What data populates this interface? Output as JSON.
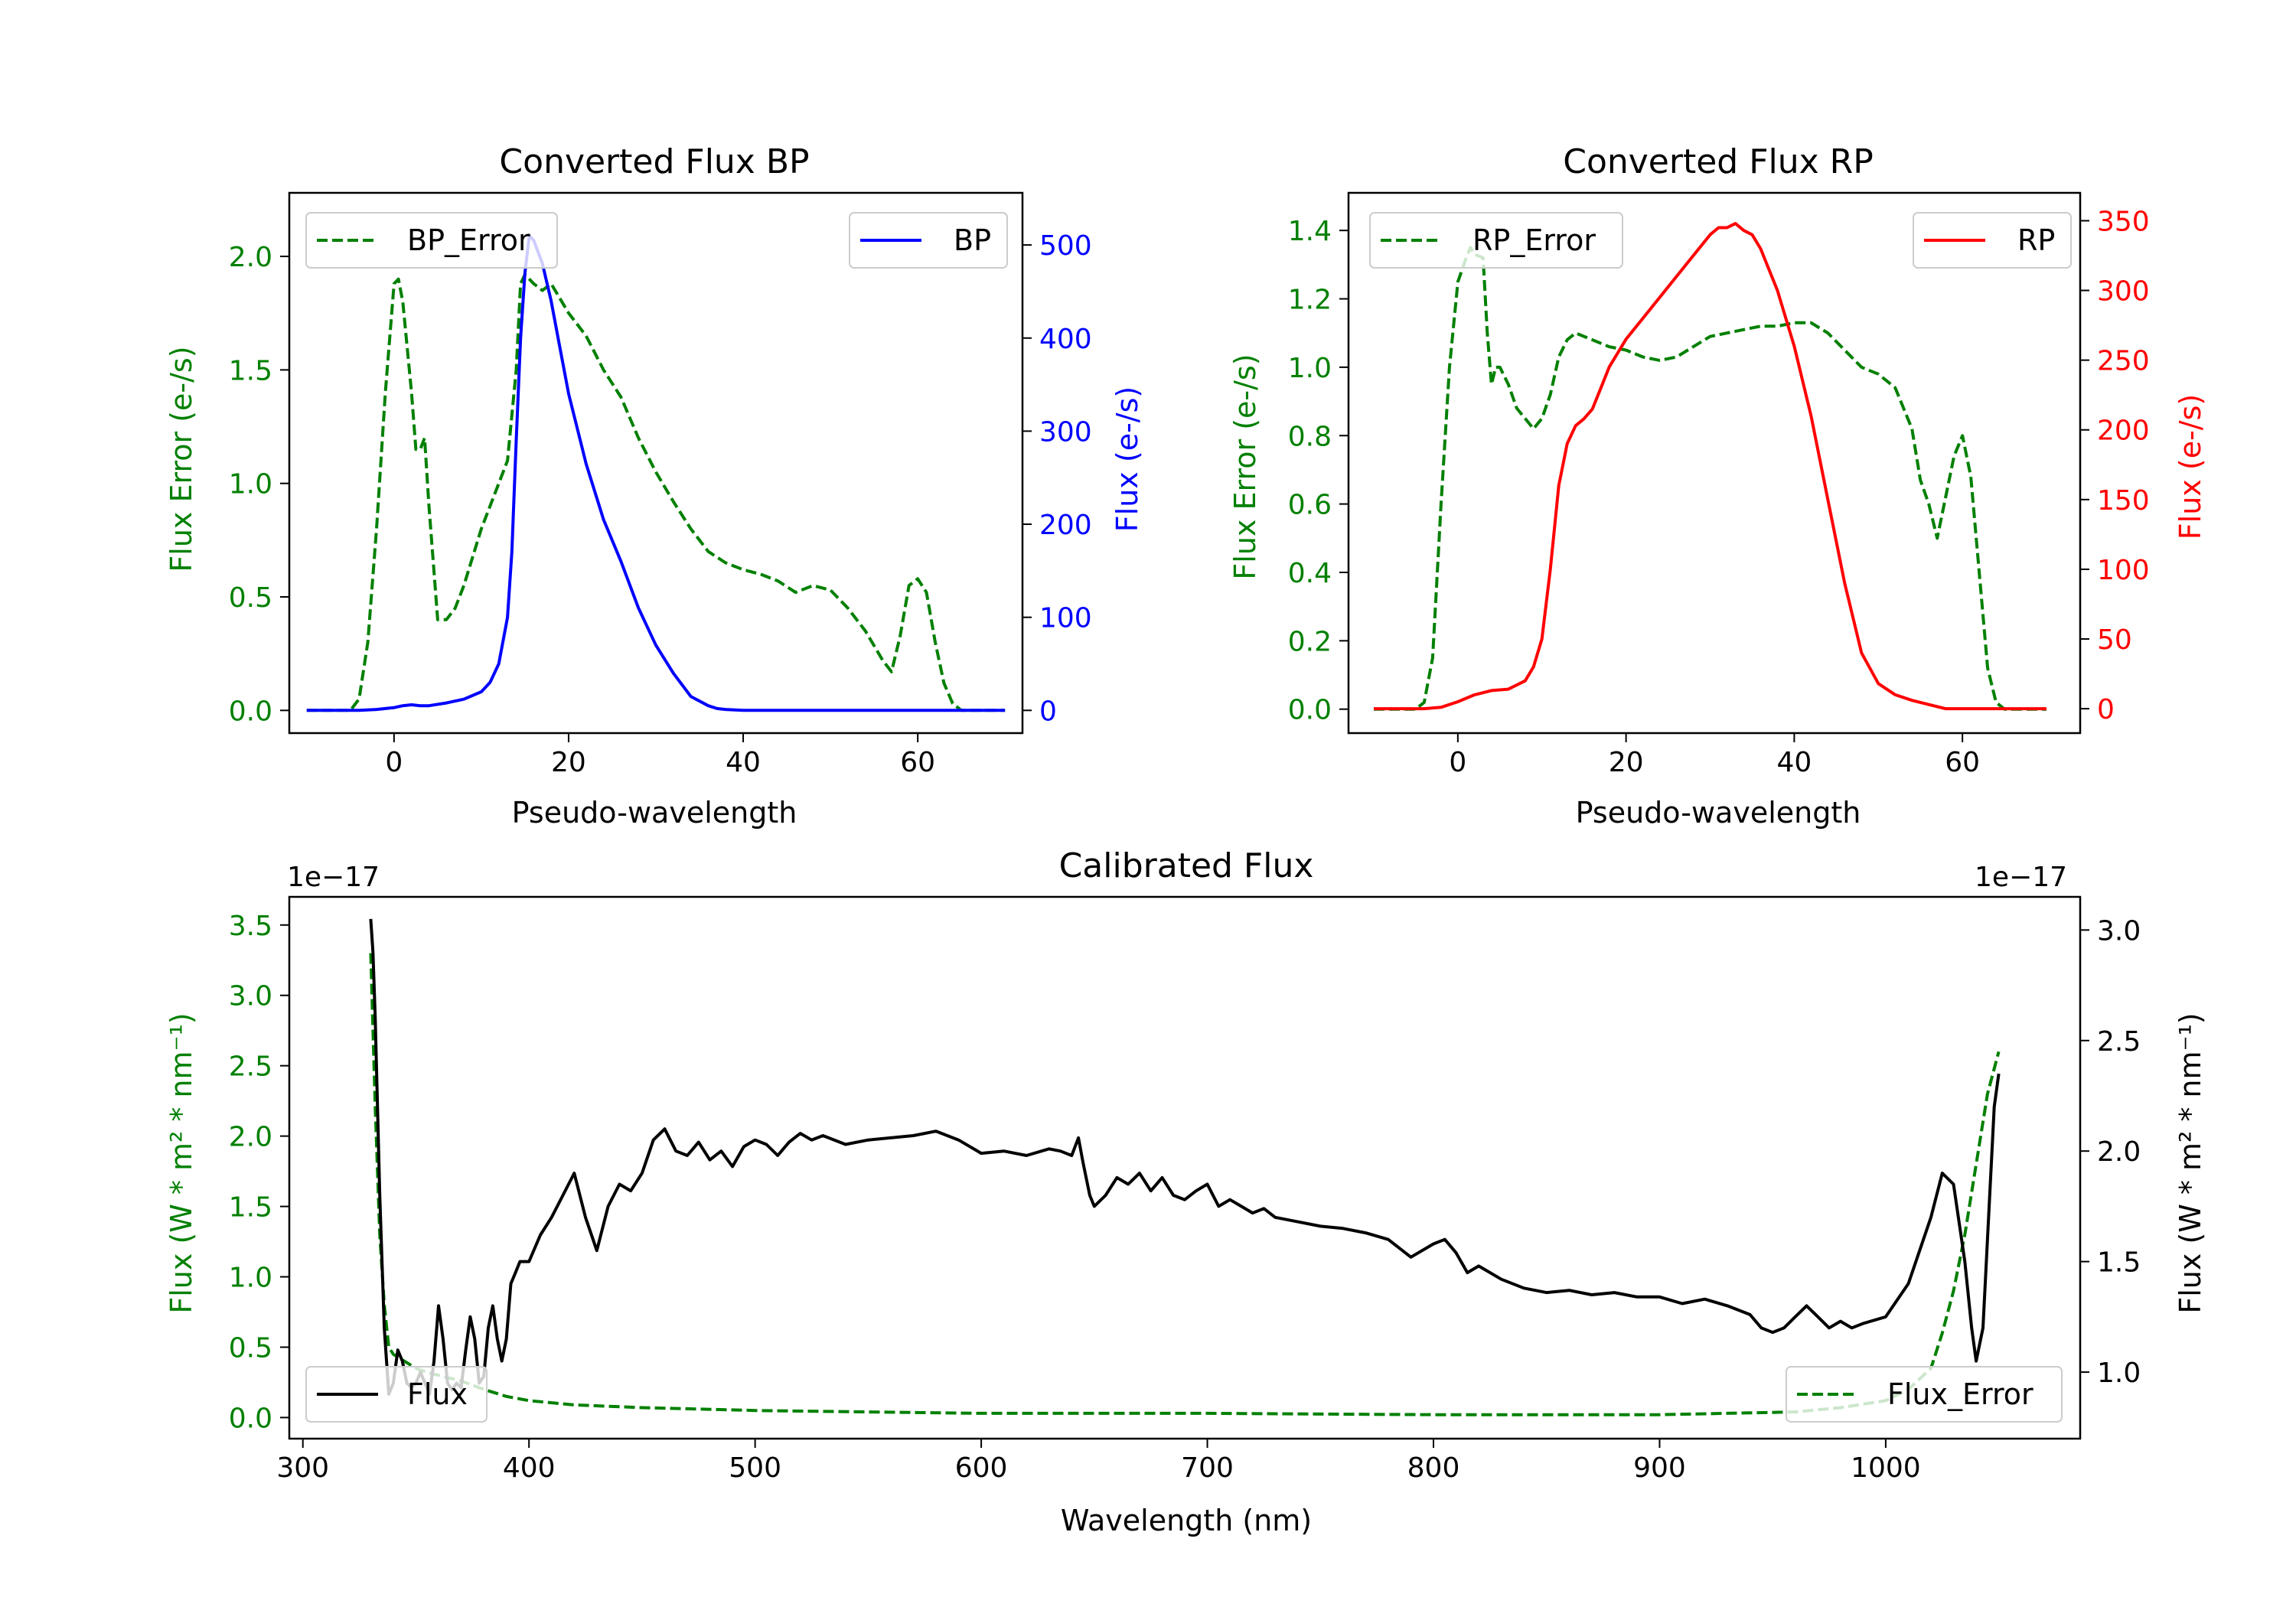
{
  "chart_data": [
    {
      "id": "bp",
      "type": "line",
      "title": "Converted Flux BP",
      "xlabel": "Pseudo-wavelength",
      "ylabel_left": "Flux Error (e-/s)",
      "ylabel_right": "Flux (e-/s)",
      "xlim": [
        -12,
        72
      ],
      "ylim_left": [
        -0.1,
        2.28
      ],
      "ylim_right": [
        -24.4,
        556
      ],
      "xticks": [
        0,
        20,
        40,
        60
      ],
      "yticks_left": [
        0.0,
        0.5,
        1.0,
        1.5,
        2.0
      ],
      "yticks_left_labels": [
        "0.0",
        "0.5",
        "1.0",
        "1.5",
        "2.0"
      ],
      "yticks_right": [
        0,
        100,
        200,
        300,
        400,
        500
      ],
      "yticks_right_labels": [
        "0",
        "100",
        "200",
        "300",
        "400",
        "500"
      ],
      "colors": {
        "left_axis": "#008000",
        "right_axis": "#0000ff"
      },
      "series": [
        {
          "name": "BP_Error",
          "axis": "left",
          "color": "#008000",
          "dash": true,
          "x": [
            -10,
            -5,
            -4,
            -3,
            -2,
            -1,
            0,
            0.5,
            1,
            2,
            2.5,
            3,
            3.5,
            4,
            5,
            6,
            7,
            8,
            10,
            12,
            13,
            14,
            14.5,
            15,
            15.5,
            16,
            17,
            18,
            20,
            22,
            24,
            26,
            28,
            30,
            32,
            34,
            36,
            38,
            40,
            42,
            44,
            46,
            48,
            50,
            52,
            54,
            56,
            57,
            58,
            59,
            60,
            61,
            62,
            63,
            64,
            65,
            70
          ],
          "y": [
            0,
            0,
            0.05,
            0.3,
            0.8,
            1.4,
            1.88,
            1.9,
            1.8,
            1.4,
            1.15,
            1.15,
            1.2,
            0.9,
            0.4,
            0.4,
            0.45,
            0.55,
            0.8,
            1.0,
            1.1,
            1.5,
            1.88,
            1.92,
            1.9,
            1.88,
            1.85,
            1.88,
            1.75,
            1.65,
            1.5,
            1.38,
            1.2,
            1.05,
            0.92,
            0.8,
            0.7,
            0.65,
            0.62,
            0.6,
            0.57,
            0.52,
            0.55,
            0.53,
            0.45,
            0.35,
            0.22,
            0.17,
            0.33,
            0.55,
            0.58,
            0.52,
            0.3,
            0.12,
            0.03,
            0,
            0
          ]
        },
        {
          "name": "BP",
          "axis": "right",
          "color": "#0000ff",
          "dash": false,
          "x": [
            -10,
            -4,
            -2,
            0,
            1,
            2,
            3,
            4,
            6,
            8,
            10,
            11,
            12,
            13,
            13.5,
            14,
            14.5,
            15,
            15.5,
            16,
            17,
            18,
            19,
            20,
            22,
            24,
            26,
            28,
            30,
            32,
            34,
            36,
            37,
            38,
            40,
            42,
            44,
            46,
            48,
            50,
            52,
            54,
            56,
            58,
            60,
            62,
            64,
            66,
            70
          ],
          "y": [
            0,
            0,
            1,
            3,
            5,
            6,
            5,
            5,
            8,
            12,
            20,
            30,
            50,
            100,
            170,
            290,
            400,
            470,
            510,
            505,
            480,
            440,
            390,
            340,
            265,
            205,
            160,
            110,
            70,
            40,
            15,
            5,
            2,
            1,
            0,
            0,
            0,
            0,
            0,
            0,
            0,
            0,
            0,
            0,
            0,
            0,
            0,
            0,
            0
          ]
        }
      ],
      "legend": [
        {
          "label": "BP_Error",
          "position": "upper-left"
        },
        {
          "label": "BP",
          "position": "upper-right"
        }
      ]
    },
    {
      "id": "rp",
      "type": "line",
      "title": "Converted Flux RP",
      "xlabel": "Pseudo-wavelength",
      "ylabel_left": "Flux Error (e-/s)",
      "ylabel_right": "Flux (e-/s)",
      "xlim": [
        -13,
        74
      ],
      "ylim_left": [
        -0.07,
        1.51
      ],
      "ylim_right": [
        -17.5,
        370
      ],
      "xticks": [
        0,
        20,
        40,
        60
      ],
      "yticks_left": [
        0.0,
        0.2,
        0.4,
        0.6,
        0.8,
        1.0,
        1.2,
        1.4
      ],
      "yticks_left_labels": [
        "0.0",
        "0.2",
        "0.4",
        "0.6",
        "0.8",
        "1.0",
        "1.2",
        "1.4"
      ],
      "yticks_right": [
        0,
        50,
        100,
        150,
        200,
        250,
        300,
        350
      ],
      "yticks_right_labels": [
        "0",
        "50",
        "100",
        "150",
        "200",
        "250",
        "300",
        "350"
      ],
      "colors": {
        "left_axis": "#008000",
        "right_axis": "#ff0000"
      },
      "series": [
        {
          "name": "RP_Error",
          "axis": "left",
          "color": "#008000",
          "dash": true,
          "x": [
            -10,
            -5,
            -4,
            -3,
            -2,
            -1,
            0,
            1,
            1.5,
            2,
            3,
            3.5,
            4,
            4.5,
            5,
            6,
            7,
            8,
            9,
            10,
            11,
            12,
            13,
            14,
            16,
            18,
            20,
            22,
            24,
            26,
            28,
            30,
            32,
            34,
            36,
            38,
            40,
            42,
            44,
            46,
            48,
            50,
            52,
            54,
            55,
            56,
            57,
            58,
            59,
            60,
            61,
            62,
            63,
            64,
            65,
            70
          ],
          "y": [
            0,
            0,
            0.02,
            0.15,
            0.6,
            1.0,
            1.25,
            1.32,
            1.35,
            1.33,
            1.32,
            1.1,
            0.95,
            1.0,
            1.0,
            0.95,
            0.88,
            0.85,
            0.82,
            0.85,
            0.92,
            1.03,
            1.08,
            1.1,
            1.08,
            1.06,
            1.05,
            1.03,
            1.02,
            1.03,
            1.06,
            1.09,
            1.1,
            1.11,
            1.12,
            1.12,
            1.13,
            1.13,
            1.1,
            1.05,
            1.0,
            0.98,
            0.94,
            0.82,
            0.67,
            0.6,
            0.5,
            0.62,
            0.74,
            0.8,
            0.68,
            0.4,
            0.12,
            0.02,
            0,
            0
          ]
        },
        {
          "name": "RP",
          "axis": "right",
          "color": "#ff0000",
          "dash": false,
          "x": [
            -10,
            -4,
            -2,
            0,
            2,
            4,
            6,
            8,
            9,
            10,
            11,
            12,
            13,
            14,
            15,
            16,
            17,
            18,
            19,
            20,
            22,
            24,
            26,
            28,
            30,
            31,
            32,
            33,
            34,
            35,
            36,
            38,
            40,
            42,
            44,
            46,
            48,
            50,
            52,
            54,
            56,
            58,
            60,
            62,
            64,
            66,
            70
          ],
          "y": [
            0,
            0,
            1,
            5,
            10,
            13,
            14,
            20,
            30,
            50,
            100,
            160,
            190,
            203,
            208,
            215,
            230,
            245,
            255,
            265,
            280,
            295,
            310,
            325,
            340,
            345,
            345,
            348,
            343,
            340,
            330,
            300,
            260,
            210,
            150,
            90,
            40,
            18,
            10,
            6,
            3,
            0,
            0,
            0,
            0,
            0,
            0
          ]
        }
      ],
      "legend": [
        {
          "label": "RP_Error",
          "position": "upper-left"
        },
        {
          "label": "RP",
          "position": "upper-right"
        }
      ]
    },
    {
      "id": "cal",
      "type": "line",
      "title": "Calibrated Flux",
      "xlabel": "Wavelength (nm)",
      "ylabel_left": "Flux (W * m² * nm⁻¹)",
      "ylabel_right": "Flux (W * m² * nm⁻¹)",
      "offset_left": "1e−17",
      "offset_right": "1e−17",
      "xlim": [
        294,
        1086
      ],
      "ylim_left": [
        -0.15,
        3.7
      ],
      "ylim_right": [
        0.699,
        3.15
      ],
      "xticks": [
        300,
        400,
        500,
        600,
        700,
        800,
        900,
        1000
      ],
      "yticks_left": [
        0.0,
        0.5,
        1.0,
        1.5,
        2.0,
        2.5,
        3.0,
        3.5
      ],
      "yticks_left_labels": [
        "0.0",
        "0.5",
        "1.0",
        "1.5",
        "2.0",
        "2.5",
        "3.0",
        "3.5"
      ],
      "yticks_right": [
        1.0,
        1.5,
        2.0,
        2.5,
        3.0
      ],
      "yticks_right_labels": [
        "1.0",
        "1.5",
        "2.0",
        "2.5",
        "3.0"
      ],
      "colors": {
        "left_axis": "#008000",
        "right_axis": "#000000"
      },
      "series": [
        {
          "name": "Flux_Error",
          "axis": "left",
          "color": "#008000",
          "dash": true,
          "x": [
            330,
            332,
            334,
            336,
            338,
            340,
            345,
            350,
            355,
            360,
            365,
            370,
            380,
            390,
            400,
            420,
            450,
            500,
            550,
            600,
            640,
            700,
            800,
            900,
            960,
            980,
            1000,
            1010,
            1020,
            1025,
            1030,
            1035,
            1040,
            1045,
            1050
          ],
          "y": [
            3.3,
            2.2,
            1.3,
            0.8,
            0.5,
            0.45,
            0.4,
            0.35,
            0.32,
            0.3,
            0.28,
            0.26,
            0.2,
            0.15,
            0.12,
            0.09,
            0.07,
            0.05,
            0.04,
            0.03,
            0.03,
            0.03,
            0.02,
            0.02,
            0.04,
            0.07,
            0.12,
            0.2,
            0.35,
            0.6,
            0.9,
            1.3,
            1.8,
            2.3,
            2.6
          ]
        },
        {
          "name": "Flux",
          "axis": "right",
          "color": "#000000",
          "dash": false,
          "x": [
            330,
            331,
            332,
            334,
            336,
            338,
            340,
            342,
            344,
            346,
            348,
            350,
            352,
            354,
            356,
            358,
            360,
            362,
            364,
            366,
            368,
            370,
            372,
            374,
            376,
            378,
            380,
            382,
            384,
            386,
            388,
            390,
            392,
            394,
            396,
            400,
            405,
            410,
            415,
            420,
            425,
            430,
            435,
            440,
            445,
            450,
            455,
            460,
            465,
            470,
            475,
            480,
            485,
            490,
            495,
            500,
            505,
            510,
            515,
            520,
            525,
            530,
            540,
            550,
            560,
            570,
            580,
            590,
            600,
            610,
            620,
            630,
            635,
            640,
            643,
            645,
            648,
            650,
            655,
            660,
            665,
            670,
            675,
            680,
            685,
            690,
            695,
            700,
            705,
            710,
            715,
            720,
            725,
            730,
            740,
            750,
            760,
            770,
            780,
            790,
            800,
            805,
            810,
            815,
            820,
            830,
            840,
            850,
            860,
            870,
            880,
            890,
            900,
            910,
            920,
            930,
            940,
            945,
            950,
            955,
            960,
            965,
            970,
            975,
            980,
            985,
            990,
            1000,
            1010,
            1020,
            1025,
            1030,
            1035,
            1038,
            1040,
            1043,
            1046,
            1048,
            1050
          ],
          "y": [
            3.05,
            2.9,
            2.6,
            1.8,
            1.2,
            0.9,
            0.95,
            1.1,
            1.05,
            0.95,
            0.93,
            0.95,
            1.0,
            0.95,
            0.9,
            1.05,
            1.3,
            1.15,
            0.95,
            0.92,
            0.95,
            0.93,
            1.1,
            1.25,
            1.15,
            0.95,
            0.98,
            1.2,
            1.3,
            1.15,
            1.05,
            1.15,
            1.4,
            1.45,
            1.5,
            1.5,
            1.62,
            1.7,
            1.8,
            1.9,
            1.7,
            1.55,
            1.75,
            1.85,
            1.82,
            1.9,
            2.05,
            2.1,
            2.0,
            1.98,
            2.04,
            1.96,
            2.0,
            1.93,
            2.02,
            2.05,
            2.03,
            1.98,
            2.04,
            2.08,
            2.05,
            2.07,
            2.03,
            2.05,
            2.06,
            2.07,
            2.09,
            2.05,
            1.99,
            2.0,
            1.98,
            2.01,
            2.0,
            1.98,
            2.06,
            1.95,
            1.8,
            1.75,
            1.8,
            1.88,
            1.85,
            1.9,
            1.82,
            1.88,
            1.8,
            1.78,
            1.82,
            1.85,
            1.75,
            1.78,
            1.75,
            1.72,
            1.74,
            1.7,
            1.68,
            1.66,
            1.65,
            1.63,
            1.6,
            1.52,
            1.58,
            1.6,
            1.54,
            1.45,
            1.48,
            1.42,
            1.38,
            1.36,
            1.37,
            1.35,
            1.36,
            1.34,
            1.34,
            1.31,
            1.33,
            1.3,
            1.26,
            1.2,
            1.18,
            1.2,
            1.25,
            1.3,
            1.25,
            1.2,
            1.23,
            1.2,
            1.22,
            1.25,
            1.4,
            1.7,
            1.9,
            1.85,
            1.5,
            1.2,
            1.05,
            1.2,
            1.8,
            2.2,
            2.35
          ]
        }
      ],
      "legend": [
        {
          "label": "Flux",
          "position": "lower-left"
        },
        {
          "label": "Flux_Error",
          "position": "lower-right"
        }
      ]
    }
  ]
}
